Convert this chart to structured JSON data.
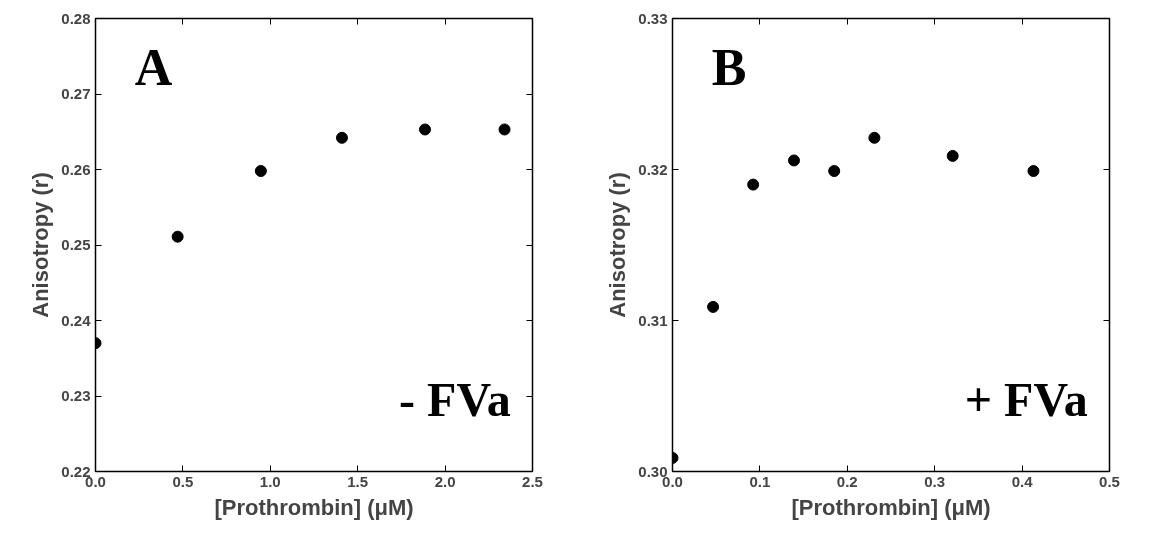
{
  "chart_data": [
    {
      "type": "scatter",
      "xlabel": "[Prothrombin] (μM)",
      "ylabel": "Anisotropy (r)",
      "annotations": [
        "A",
        "- FVa"
      ],
      "marker": "circle",
      "grid": false,
      "xlim": [
        0.0,
        2.5
      ],
      "xticks": [
        {
          "value": 0,
          "label": "0.0"
        },
        0.5,
        {
          "value": 1,
          "label": "1.0"
        },
        1.5,
        {
          "value": 2,
          "label": "2.0"
        },
        2.5
      ],
      "ylim": [
        0.22,
        0.28
      ],
      "yticks": [
        0.22,
        0.23,
        0.24,
        0.25,
        0.26,
        0.27,
        0.28
      ],
      "series": [
        {
          "color": "#000000",
          "x": [
            0.0,
            0.47,
            0.946,
            1.41,
            1.885,
            2.34
          ],
          "values": [
            0.237,
            0.2511,
            0.2598,
            0.2642,
            0.2653,
            0.2653
          ]
        }
      ]
    },
    {
      "type": "scatter",
      "xlabel": "[Prothrombin] (μM)",
      "ylabel": "Anisotropy (r)",
      "annotations": [
        "B",
        "+ FVa"
      ],
      "marker": "circle",
      "grid": false,
      "xlim": [
        0.0,
        0.5
      ],
      "xticks": [
        {
          "value": 0,
          "label": "0.0"
        },
        0.1,
        0.2,
        0.3,
        0.4,
        0.5
      ],
      "ylim": [
        0.3,
        0.33
      ],
      "yticks": [
        {
          "value": 0.3,
          "label": "0.30"
        },
        0.31,
        0.32,
        0.33
      ],
      "series": [
        {
          "color": "#000000",
          "x": [
            0.0,
            0.0464,
            0.0923,
            0.139,
            0.185,
            0.231,
            0.3206,
            0.413
          ],
          "values": [
            0.3009,
            0.3109,
            0.319,
            0.3206,
            0.3199,
            0.3221,
            0.3209,
            0.3199
          ]
        }
      ]
    }
  ]
}
